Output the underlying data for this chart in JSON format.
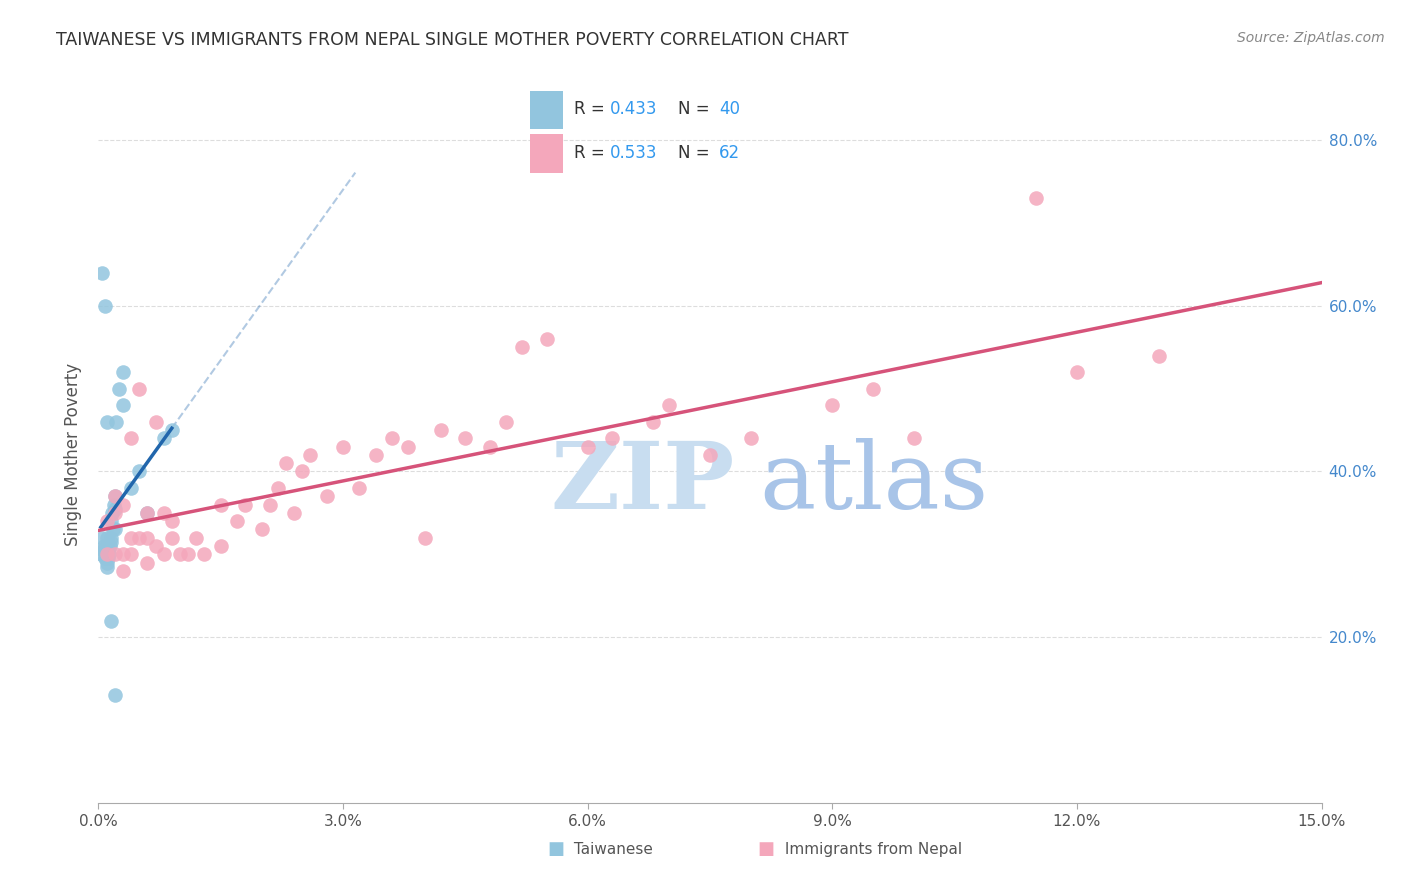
{
  "title": "TAIWANESE VS IMMIGRANTS FROM NEPAL SINGLE MOTHER POVERTY CORRELATION CHART",
  "source": "Source: ZipAtlas.com",
  "ylabel": "Single Mother Poverty",
  "xlim": [
    0.0,
    0.15
  ],
  "ylim": [
    0.0,
    0.84
  ],
  "R_taiwanese": 0.433,
  "N_taiwanese": 40,
  "R_nepal": 0.533,
  "N_nepal": 62,
  "color_taiwanese": "#92c5de",
  "color_nepal": "#f4a7bb",
  "color_line_taiwanese": "#2166ac",
  "color_line_nepal": "#d6537a",
  "watermark": "ZIPatlas",
  "watermark_zip_color": "#c8ddf0",
  "watermark_atlas_color": "#a8c4e8",
  "ytick_vals": [
    0.2,
    0.4,
    0.6,
    0.8
  ],
  "ytick_labels": [
    "20.0%",
    "40.0%",
    "60.0%",
    "80.0%"
  ],
  "xtick_vals": [
    0.0,
    0.03,
    0.06,
    0.09,
    0.12,
    0.15
  ],
  "xtick_labels": [
    "0.0%",
    "3.0%",
    "6.0%",
    "9.0%",
    "12.0%",
    "15.0%"
  ],
  "grid_color": "#dddddd",
  "r_n_color": "#3399ee",
  "title_color": "#333333",
  "source_color": "#888888",
  "ylabel_color": "#555555",
  "tick_label_color": "#555555",
  "tw_x": [
    0.0003,
    0.0005,
    0.0006,
    0.0007,
    0.0008,
    0.0008,
    0.0009,
    0.0009,
    0.001,
    0.001,
    0.001,
    0.001,
    0.001,
    0.0012,
    0.0012,
    0.0013,
    0.0014,
    0.0015,
    0.0015,
    0.0016,
    0.0017,
    0.0018,
    0.0019,
    0.002,
    0.002,
    0.002,
    0.0022,
    0.0025,
    0.003,
    0.003,
    0.004,
    0.005,
    0.006,
    0.008,
    0.009,
    0.0005,
    0.0008,
    0.001,
    0.0015,
    0.002
  ],
  "tw_y": [
    0.3,
    0.32,
    0.305,
    0.31,
    0.295,
    0.305,
    0.295,
    0.305,
    0.285,
    0.29,
    0.3,
    0.31,
    0.32,
    0.295,
    0.305,
    0.3,
    0.31,
    0.315,
    0.32,
    0.34,
    0.35,
    0.33,
    0.36,
    0.33,
    0.355,
    0.37,
    0.46,
    0.5,
    0.48,
    0.52,
    0.38,
    0.4,
    0.35,
    0.44,
    0.45,
    0.64,
    0.6,
    0.46,
    0.22,
    0.13
  ],
  "np_x": [
    0.001,
    0.001,
    0.002,
    0.002,
    0.002,
    0.003,
    0.003,
    0.003,
    0.004,
    0.004,
    0.004,
    0.005,
    0.005,
    0.006,
    0.006,
    0.006,
    0.007,
    0.007,
    0.008,
    0.008,
    0.009,
    0.009,
    0.01,
    0.011,
    0.012,
    0.013,
    0.015,
    0.015,
    0.017,
    0.018,
    0.02,
    0.021,
    0.022,
    0.023,
    0.024,
    0.025,
    0.026,
    0.028,
    0.03,
    0.032,
    0.034,
    0.036,
    0.038,
    0.04,
    0.042,
    0.045,
    0.048,
    0.05,
    0.052,
    0.055,
    0.06,
    0.063,
    0.068,
    0.07,
    0.075,
    0.08,
    0.09,
    0.095,
    0.1,
    0.115,
    0.12,
    0.13
  ],
  "np_y": [
    0.3,
    0.34,
    0.3,
    0.35,
    0.37,
    0.28,
    0.3,
    0.36,
    0.3,
    0.32,
    0.44,
    0.32,
    0.5,
    0.29,
    0.32,
    0.35,
    0.31,
    0.46,
    0.3,
    0.35,
    0.32,
    0.34,
    0.3,
    0.3,
    0.32,
    0.3,
    0.31,
    0.36,
    0.34,
    0.36,
    0.33,
    0.36,
    0.38,
    0.41,
    0.35,
    0.4,
    0.42,
    0.37,
    0.43,
    0.38,
    0.42,
    0.44,
    0.43,
    0.32,
    0.45,
    0.44,
    0.43,
    0.46,
    0.55,
    0.56,
    0.43,
    0.44,
    0.46,
    0.48,
    0.42,
    0.44,
    0.48,
    0.5,
    0.44,
    0.73,
    0.52,
    0.54
  ]
}
